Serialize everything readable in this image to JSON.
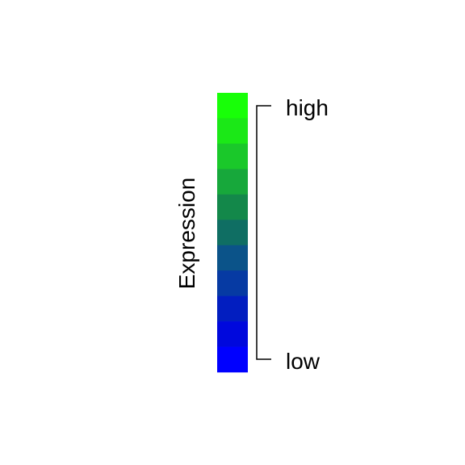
{
  "chart_data": {
    "type": "heatmap",
    "title": "",
    "label": "Expression",
    "scale_labels": {
      "high": "high",
      "low": "low"
    },
    "color_steps_top_to_bottom": [
      "#18ff08",
      "#1be817",
      "#1ac82a",
      "#17a83b",
      "#13884a",
      "#0f6e63",
      "#0b5389",
      "#063aa3",
      "#021ec0",
      "#0008dd",
      "#0000ff"
    ]
  }
}
